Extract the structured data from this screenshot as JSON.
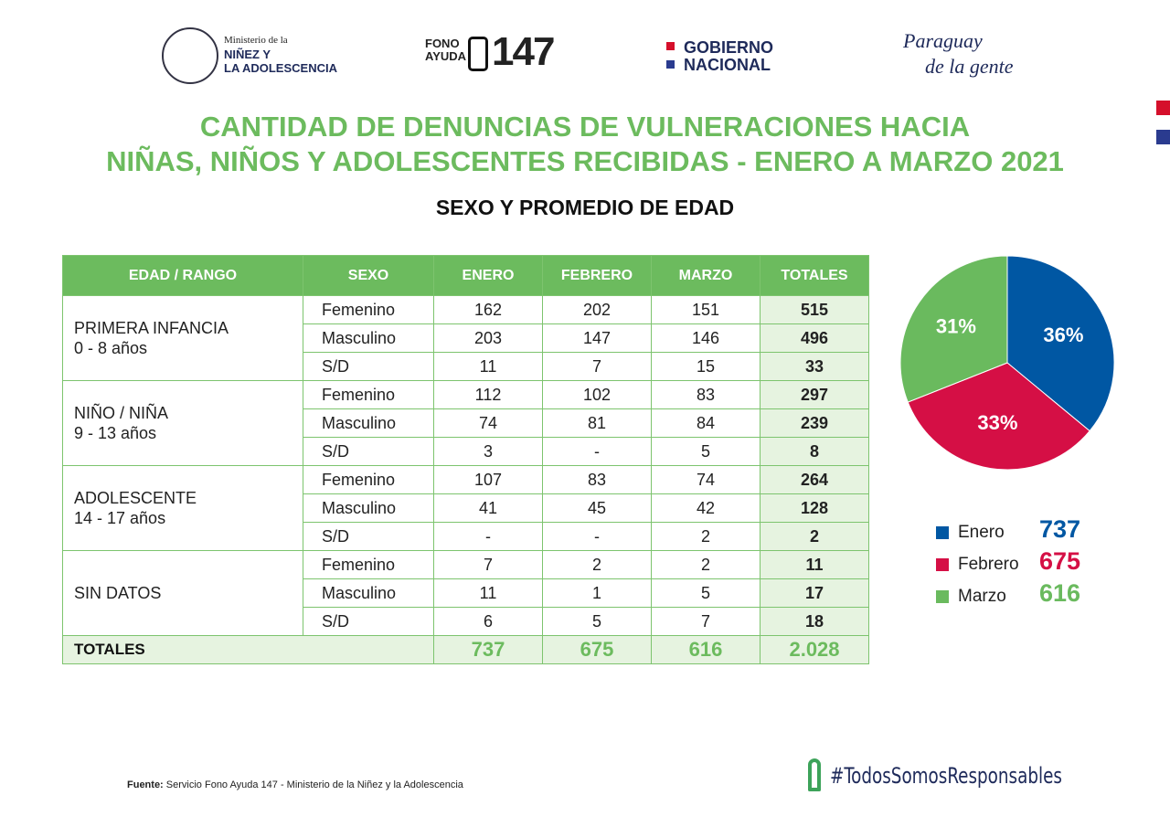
{
  "header": {
    "ministry": [
      "Ministerio de la",
      "NIÑEZ Y",
      "LA ADOLESCENCIA"
    ],
    "fono": [
      "FONO",
      "AYUDA",
      "147"
    ],
    "gobierno": [
      "GOBIERNO",
      "NACIONAL"
    ],
    "paraguay": [
      "Paraguay",
      "de la gente"
    ]
  },
  "title": [
    "CANTIDAD DE DENUNCIAS DE VULNERACIONES HACIA",
    "NIÑAS, NIÑOS Y ADOLESCENTES RECIBIDAS - ENERO A MARZO 2021"
  ],
  "subtitle": "SEXO Y PROMEDIO DE EDAD",
  "table": {
    "header": [
      "EDAD / RANGO",
      "SEXO",
      "ENERO",
      "FEBRERO",
      "MARZO",
      "TOTALES"
    ],
    "groups": [
      {
        "label": "PRIMERA INFANCIA",
        "range": "0 - 8 años",
        "rows": [
          [
            "Femenino",
            162,
            202,
            151,
            515
          ],
          [
            "Masculino",
            203,
            147,
            146,
            496
          ],
          [
            "S/D",
            11,
            7,
            15,
            33
          ]
        ]
      },
      {
        "label": "NIÑO / NIÑA",
        "range": "9 - 13 años",
        "rows": [
          [
            "Femenino",
            112,
            102,
            83,
            297
          ],
          [
            "Masculino",
            74,
            81,
            84,
            239
          ],
          [
            "S/D",
            3,
            "-",
            5,
            8
          ]
        ]
      },
      {
        "label": "ADOLESCENTE",
        "range": "14 - 17 años",
        "rows": [
          [
            "Femenino",
            107,
            83,
            74,
            264
          ],
          [
            "Masculino",
            41,
            45,
            42,
            128
          ],
          [
            "S/D",
            "-",
            "-",
            2,
            2
          ]
        ]
      },
      {
        "label": "SIN DATOS",
        "range": null,
        "rows": [
          [
            "Femenino",
            7,
            2,
            2,
            11
          ],
          [
            "Masculino",
            11,
            1,
            5,
            17
          ],
          [
            "S/D",
            6,
            5,
            7,
            18
          ]
        ]
      }
    ],
    "totals": {
      "label": "TOTALES",
      "values": [
        737,
        675,
        616,
        "2.028"
      ]
    }
  },
  "chart_data": {
    "type": "pie",
    "categories": [
      "Enero",
      "Febrero",
      "Marzo"
    ],
    "values": [
      36,
      33,
      31
    ],
    "value_labels": [
      "36%",
      "33%",
      "31%"
    ],
    "colors": [
      "#0057a3",
      "#d50f45",
      "#6aba5e"
    ],
    "totals": [
      737,
      675,
      616
    ]
  },
  "footer": {
    "source_label": "Fuente:",
    "source": "Servicio Fono Ayuda 147 - Ministerio de la Niñez y la Adolescencia",
    "hashtag": "#TodosSomosResponsables"
  }
}
